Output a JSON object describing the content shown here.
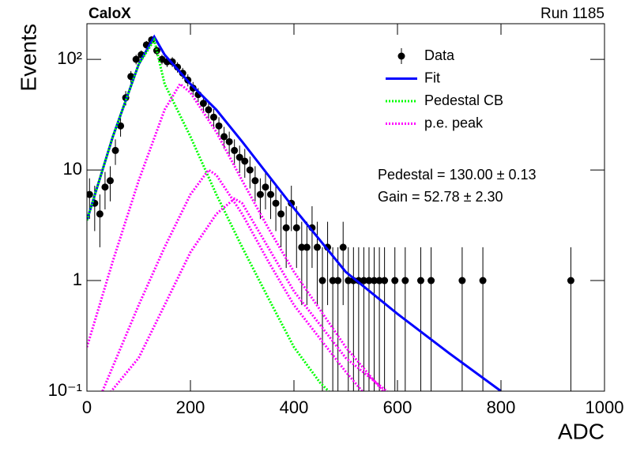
{
  "chart_data": {
    "type": "line",
    "title": "CaloX",
    "subtitle": "Run 1185",
    "x_label": "ADC",
    "y_label": "Events",
    "annotations": [
      "Pedestal = 130.00 ± 0.13",
      "Gain = 52.78 ± 2.30"
    ],
    "log_y": true,
    "legend": "top-right",
    "xlim": [
      0,
      1000
    ],
    "ylim": [
      0.1,
      210
    ],
    "xticks": [
      0,
      200,
      400,
      600,
      800,
      1000
    ],
    "yticks": [
      {
        "value": 0.1,
        "label": "10⁻¹"
      },
      1,
      10,
      {
        "value": 100,
        "label": "10²"
      }
    ],
    "series": [
      {
        "name": "Data",
        "color": "#000000",
        "style": "points",
        "x": [
          5,
          15,
          25,
          35,
          45,
          55,
          65,
          75,
          85,
          95,
          105,
          115,
          125,
          135,
          145,
          155,
          165,
          175,
          185,
          195,
          205,
          215,
          225,
          235,
          245,
          255,
          265,
          275,
          285,
          295,
          305,
          315,
          325,
          335,
          345,
          355,
          365,
          375,
          385,
          395,
          405,
          415,
          425,
          435,
          445,
          455,
          465,
          475,
          485,
          495,
          505,
          515,
          525,
          535,
          545,
          555,
          565,
          575,
          585,
          595,
          605,
          615,
          625,
          635,
          645,
          655,
          665,
          675,
          685,
          695,
          705,
          715,
          725,
          735,
          745,
          755,
          765,
          775,
          785,
          795,
          805,
          815,
          825,
          835,
          845,
          855,
          865,
          875,
          885,
          895,
          905,
          915,
          925,
          935,
          945,
          955,
          965,
          975,
          985,
          995
        ],
        "values": [
          6,
          5,
          4,
          7,
          8,
          15,
          25,
          45,
          70,
          100,
          110,
          135,
          150,
          120,
          100,
          95,
          95,
          85,
          75,
          65,
          55,
          48,
          40,
          35,
          30,
          25,
          20,
          18,
          15,
          13,
          12,
          10,
          8,
          6,
          7,
          6,
          5,
          4,
          3,
          5,
          3,
          2,
          2,
          3,
          2,
          1,
          2,
          1,
          1,
          2,
          1,
          1,
          1,
          1,
          1,
          1,
          1,
          1,
          null,
          1,
          null,
          1,
          null,
          null,
          1,
          null,
          1,
          null,
          null,
          null,
          null,
          null,
          1,
          null,
          null,
          null,
          1,
          null,
          null,
          null,
          null,
          null,
          null,
          null,
          null,
          null,
          null,
          null,
          null,
          null,
          null,
          null,
          null,
          1,
          null,
          null,
          null,
          null,
          null,
          null
        ],
        "errors": [
          2.4,
          2.2,
          2,
          2.6,
          2.8,
          3.9,
          5,
          6.7,
          8.4,
          10,
          10.5,
          11.6,
          12.2,
          11,
          10,
          9.7,
          9.7,
          9.2,
          8.7,
          8.1,
          7.4,
          6.9,
          6.3,
          5.9,
          5.5,
          5,
          4.5,
          4.2,
          3.9,
          3.6,
          3.5,
          3.2,
          2.8,
          2.4,
          2.6,
          2.4,
          2.2,
          2,
          1.7,
          2.2,
          1.7,
          1.4,
          1.4,
          1.7,
          1.4,
          1,
          1.4,
          1,
          1,
          1.4,
          1,
          1,
          1,
          1,
          1,
          1,
          1,
          1,
          null,
          1,
          null,
          1,
          null,
          null,
          1,
          null,
          1,
          null,
          null,
          null,
          null,
          null,
          1,
          null,
          null,
          null,
          1,
          null,
          null,
          null,
          null,
          null,
          null,
          null,
          null,
          null,
          null,
          null,
          null,
          null,
          null,
          null,
          null,
          1,
          null,
          null,
          null,
          null,
          null,
          null
        ]
      },
      {
        "name": "Fit",
        "color": "#0000ff",
        "style": "solid",
        "x": [
          0,
          50,
          100,
          130,
          150,
          200,
          250,
          300,
          350,
          400,
          500,
          600,
          700,
          800
        ],
        "values": [
          3.5,
          20,
          90,
          160,
          110,
          60,
          35,
          18,
          9,
          4.5,
          1.2,
          0.5,
          0.22,
          0.1
        ]
      },
      {
        "name": "Pedestal CB",
        "color": "#00ff00",
        "style": "dotted",
        "x": [
          0,
          50,
          100,
          130,
          150,
          200,
          250,
          300,
          350,
          400,
          450,
          500
        ],
        "values": [
          3.5,
          20,
          90,
          150,
          60,
          20,
          6,
          2,
          0.7,
          0.25,
          0.12,
          0.07
        ]
      },
      {
        "name": "p.e. peak",
        "color": "#ff00ff",
        "style": "dotted",
        "x": [
          0,
          50,
          100,
          150,
          180,
          200,
          250,
          300,
          350,
          400,
          500,
          600,
          null,
          30,
          100,
          150,
          200,
          235,
          250,
          300,
          350,
          400,
          500,
          560,
          null,
          30,
          100,
          150,
          200,
          250,
          285,
          300,
          350,
          400,
          500,
          620
        ],
        "values": [
          0.25,
          1.5,
          8,
          35,
          60,
          50,
          22,
          8,
          3,
          1.2,
          0.25,
          0.07,
          null,
          0.1,
          0.6,
          2,
          6,
          10,
          9,
          4,
          1.5,
          0.6,
          0.15,
          0.07,
          null,
          0.08,
          0.2,
          0.6,
          1.8,
          4,
          5.5,
          5,
          2,
          0.8,
          0.2,
          0.07
        ]
      }
    ]
  }
}
